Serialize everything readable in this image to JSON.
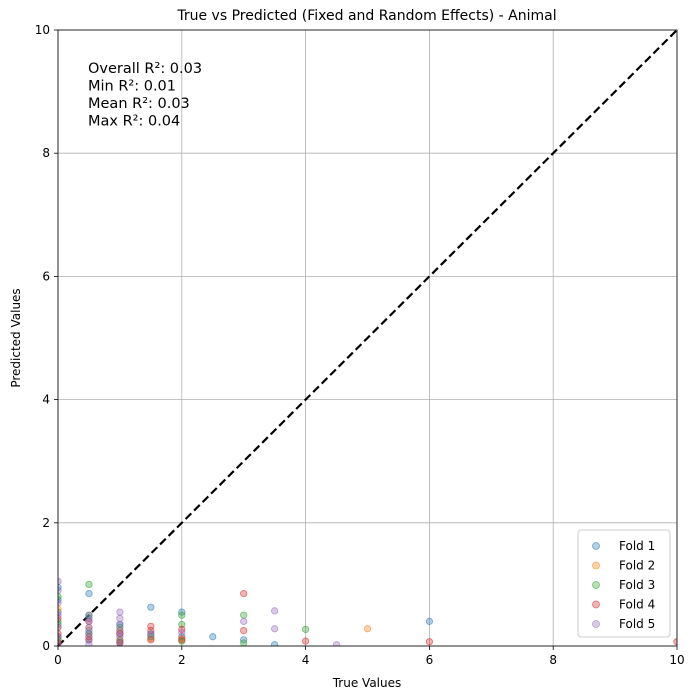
{
  "chart_data": {
    "type": "scatter",
    "title": "True vs Predicted (Fixed and Random Effects) - Animal",
    "xlabel": "True Values",
    "ylabel": "Predicted Values",
    "xlim": [
      0,
      10
    ],
    "ylim": [
      0,
      10
    ],
    "xticks": [
      "0",
      "2",
      "4",
      "6",
      "8",
      "10"
    ],
    "yticks": [
      "0",
      "2",
      "4",
      "6",
      "8",
      "10"
    ],
    "grid": true,
    "legend_position": "bottom-right",
    "reference_line": "y = x (black dashed)",
    "annotations": [
      "Overall R²: 0.03",
      "Min R²: 0.01",
      "Mean R²: 0.03",
      "Max R²: 0.04"
    ],
    "series": [
      {
        "name": "Fold 1",
        "color": "#1f77b4",
        "points": [
          [
            0,
            0.95
          ],
          [
            0,
            0.75
          ],
          [
            0,
            0.55
          ],
          [
            0,
            0.35
          ],
          [
            0,
            0.15
          ],
          [
            0,
            0.05
          ],
          [
            0.5,
            0.85
          ],
          [
            0.5,
            0.45
          ],
          [
            0.5,
            0.25
          ],
          [
            0.5,
            0.1
          ],
          [
            1,
            0.35
          ],
          [
            1,
            0.2
          ],
          [
            1,
            0.05
          ],
          [
            1.5,
            0.63
          ],
          [
            1.5,
            0.2
          ],
          [
            2,
            0.55
          ],
          [
            2,
            0.15
          ],
          [
            2.5,
            0.15
          ],
          [
            3,
            0.1
          ],
          [
            3.5,
            0.02
          ],
          [
            6,
            0.4
          ]
        ]
      },
      {
        "name": "Fold 2",
        "color": "#ff7f0e",
        "points": [
          [
            0,
            0.6
          ],
          [
            0,
            0.3
          ],
          [
            0,
            0.1
          ],
          [
            0.5,
            0.3
          ],
          [
            0.5,
            0.1
          ],
          [
            1,
            0.25
          ],
          [
            1,
            0.08
          ],
          [
            1.5,
            0.12
          ],
          [
            2,
            0.12
          ],
          [
            5,
            0.28
          ]
        ]
      },
      {
        "name": "Fold 3",
        "color": "#2ca02c",
        "points": [
          [
            0,
            0.8
          ],
          [
            0,
            0.4
          ],
          [
            0,
            0.1
          ],
          [
            0.5,
            1.0
          ],
          [
            0.5,
            0.5
          ],
          [
            0.5,
            0.2
          ],
          [
            1,
            0.3
          ],
          [
            1,
            0.1
          ],
          [
            1.5,
            0.15
          ],
          [
            2,
            0.5
          ],
          [
            2,
            0.35
          ],
          [
            2,
            0.08
          ],
          [
            3,
            0.5
          ],
          [
            3,
            0.05
          ],
          [
            4,
            0.27
          ]
        ]
      },
      {
        "name": "Fold 4",
        "color": "#d62728",
        "points": [
          [
            0,
            0.45
          ],
          [
            0,
            0.2
          ],
          [
            0,
            0.05
          ],
          [
            0.5,
            0.4
          ],
          [
            0.5,
            0.15
          ],
          [
            1,
            0.2
          ],
          [
            1,
            0.06
          ],
          [
            1.5,
            0.32
          ],
          [
            1.5,
            0.25
          ],
          [
            1.5,
            0.1
          ],
          [
            2,
            0.27
          ],
          [
            2,
            0.1
          ],
          [
            3,
            0.85
          ],
          [
            3,
            0.25
          ],
          [
            4,
            0.08
          ],
          [
            6,
            0.07
          ],
          [
            10,
            0.07
          ]
        ]
      },
      {
        "name": "Fold 5",
        "color": "#9467bd",
        "points": [
          [
            0,
            1.05
          ],
          [
            0,
            0.9
          ],
          [
            0,
            0.7
          ],
          [
            0,
            0.5
          ],
          [
            0,
            0.3
          ],
          [
            0,
            0.15
          ],
          [
            0,
            0.03
          ],
          [
            0.5,
            0.5
          ],
          [
            0.5,
            0.4
          ],
          [
            0.5,
            0.3
          ],
          [
            0.5,
            0.2
          ],
          [
            0.5,
            0.1
          ],
          [
            0.5,
            0.03
          ],
          [
            1,
            0.55
          ],
          [
            1,
            0.45
          ],
          [
            1,
            0.35
          ],
          [
            1,
            0.25
          ],
          [
            1,
            0.15
          ],
          [
            1,
            0.05
          ],
          [
            1.5,
            0.18
          ],
          [
            2,
            0.22
          ],
          [
            3,
            0.4
          ],
          [
            3.5,
            0.57
          ],
          [
            3.5,
            0.28
          ],
          [
            4.5,
            0.02
          ]
        ]
      }
    ]
  }
}
